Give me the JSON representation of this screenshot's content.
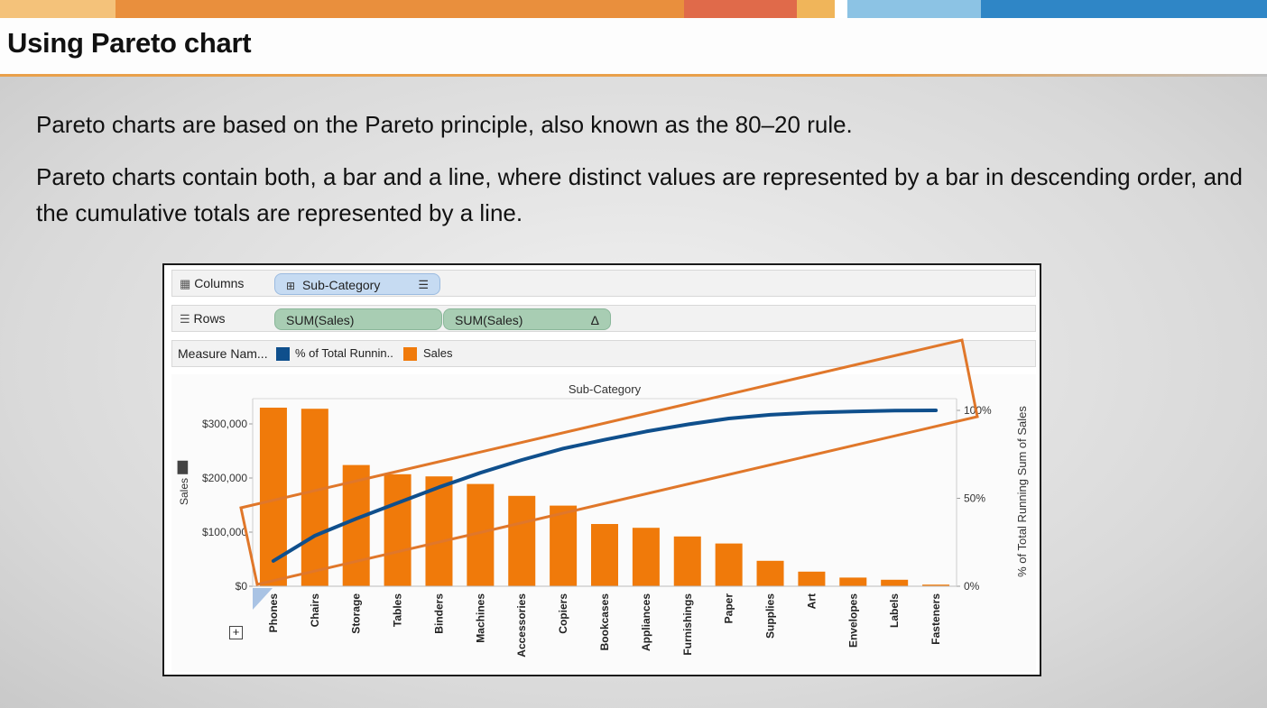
{
  "slide": {
    "title": "Using Pareto chart",
    "paragraph1": "Pareto charts are based on the Pareto principle, also known as the 80–20 rule.",
    "paragraph2": "Pareto charts contain both, a bar and a line, where distinct values are represented by a bar in descending order, and the cumulative totals are represented by a line.",
    "colors": {
      "bar": "#f07a0a",
      "line": "#0f4f8c",
      "annotation": "#e0772a"
    }
  },
  "shelves": {
    "columns": {
      "label": "Columns",
      "pill": "Sub-Category"
    },
    "rows": {
      "label": "Rows",
      "pill1": "SUM(Sales)",
      "pill2": "SUM(Sales)",
      "delta": "Δ"
    },
    "legend": {
      "label": "Measure Nam...",
      "item1": "% of Total Runnin..",
      "item2": "Sales"
    }
  },
  "chart_data": {
    "type": "bar",
    "header": "Sub-Category",
    "ylabel": "Sales",
    "y2label": "% of Total Running Sum of Sales",
    "ylim": [
      0,
      330000
    ],
    "y_ticks": [
      {
        "value": 0,
        "label": "$0"
      },
      {
        "value": 100000,
        "label": "$100,000"
      },
      {
        "value": 200000,
        "label": "$200,000"
      },
      {
        "value": 300000,
        "label": "$300,000"
      }
    ],
    "y2_ticks": [
      {
        "value": 0,
        "label": "0%"
      },
      {
        "value": 50,
        "label": "50%"
      },
      {
        "value": 100,
        "label": "100%"
      }
    ],
    "categories": [
      "Phones",
      "Chairs",
      "Storage",
      "Tables",
      "Binders",
      "Machines",
      "Accessories",
      "Copiers",
      "Bookcases",
      "Appliances",
      "Furnishings",
      "Paper",
      "Supplies",
      "Art",
      "Envelopes",
      "Labels",
      "Fasteners"
    ],
    "series": [
      {
        "name": "Sales",
        "type": "bar",
        "values": [
          330000,
          328000,
          224000,
          207000,
          203000,
          189000,
          167000,
          149000,
          115000,
          108000,
          92000,
          79000,
          47000,
          27000,
          16000,
          12000,
          3000
        ]
      },
      {
        "name": "% of Total Running Sum of Sales",
        "type": "line",
        "values": [
          14.4,
          28.7,
          38.4,
          47.4,
          56.3,
          64.5,
          71.8,
          78.3,
          83.3,
          88.0,
          92.0,
          95.4,
          97.5,
          98.7,
          99.4,
          99.9,
          100
        ]
      }
    ],
    "grid": false,
    "legend": "top"
  }
}
